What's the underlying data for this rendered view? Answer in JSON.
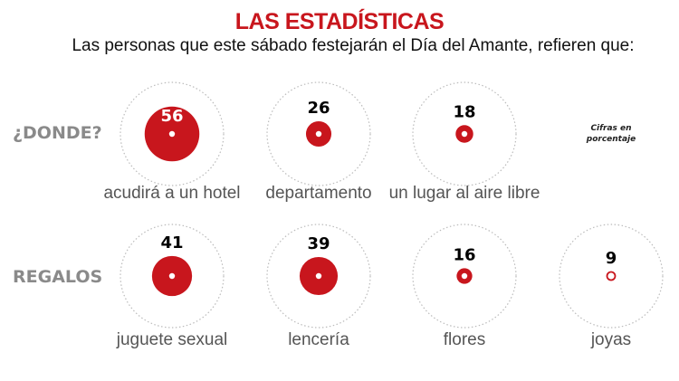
{
  "title": "LAS ESTADÍSTICAS",
  "subtitle": "Las personas que este sábado festejarán el Día del Amante, refieren que:",
  "note": "Cifras en porcentaje",
  "colors": {
    "accent": "#c8161d",
    "row_label": "#8a8a8a",
    "guide": "#bbbbbb"
  },
  "chart_data": {
    "type": "bubble",
    "unit": "porcentaje",
    "groups": [
      {
        "label": "¿DONDE?",
        "categories": [
          "acudirá a un hotel",
          "departamento",
          "un lugar al aire libre"
        ],
        "values": [
          56,
          26,
          18
        ]
      },
      {
        "label": "REGALOS",
        "categories": [
          "juguete sexual",
          "lencería",
          "flores",
          "joyas"
        ],
        "values": [
          41,
          39,
          16,
          9
        ]
      }
    ]
  }
}
